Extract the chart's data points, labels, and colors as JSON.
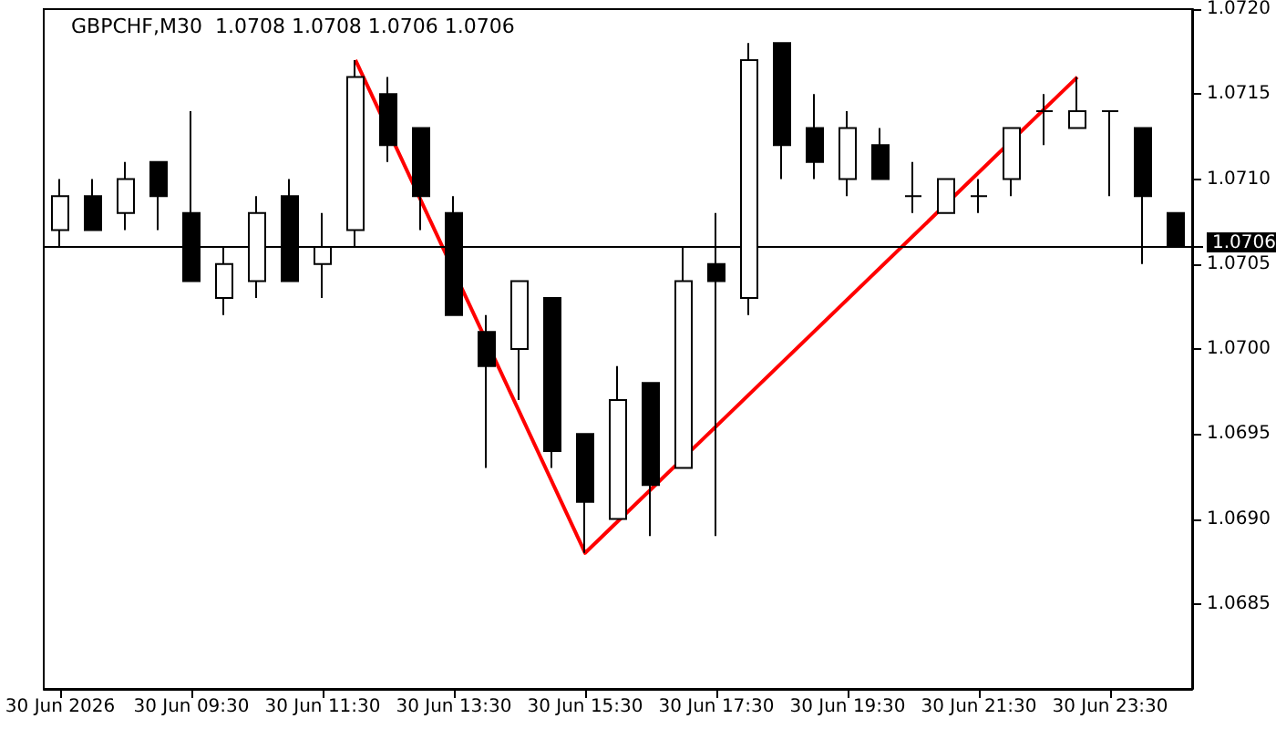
{
  "chart_data": {
    "type": "candlestick",
    "title": "GBPCHF,M30  1.0708 1.0708 1.0706 1.0706",
    "categories": [
      "30 Jun 2026",
      null,
      null,
      null,
      "30 Jun 09:30",
      null,
      null,
      null,
      "30 Jun 11:30",
      null,
      null,
      null,
      "30 Jun 13:30",
      null,
      null,
      null,
      "30 Jun 15:30",
      null,
      null,
      null,
      "30 Jun 17:30",
      null,
      null,
      null,
      "30 Jun 19:30",
      null,
      null,
      null,
      "30 Jun 21:30",
      null,
      null,
      null,
      "30 Jun 23:30",
      null,
      null
    ],
    "series": [
      {
        "color": "#000000",
        "ohlc": [
          [
            1.0707,
            1.071,
            1.0706,
            1.0709
          ],
          [
            1.0709,
            1.071,
            1.0707,
            1.0707
          ],
          [
            1.0708,
            1.0711,
            1.0707,
            1.071
          ],
          [
            1.0711,
            1.0711,
            1.0707,
            1.0709
          ],
          [
            1.0708,
            1.0714,
            1.0704,
            1.0704
          ],
          [
            1.0703,
            1.0706,
            1.0702,
            1.0705
          ],
          [
            1.0704,
            1.0709,
            1.0703,
            1.0708
          ],
          [
            1.0709,
            1.071,
            1.0704,
            1.0704
          ],
          [
            1.0705,
            1.0708,
            1.0703,
            1.0706
          ],
          [
            1.0707,
            1.0717,
            1.0706,
            1.0716
          ],
          [
            1.0715,
            1.0716,
            1.0711,
            1.0712
          ],
          [
            1.0713,
            1.0713,
            1.0707,
            1.0709
          ],
          [
            1.0708,
            1.0709,
            1.0702,
            1.0702
          ],
          [
            1.0701,
            1.0702,
            1.0693,
            1.0699
          ],
          [
            1.07,
            1.0704,
            1.0697,
            1.0704
          ],
          [
            1.0703,
            1.0703,
            1.0693,
            1.0694
          ],
          [
            1.0695,
            1.0695,
            1.0688,
            1.0691
          ],
          [
            1.069,
            1.0699,
            1.069,
            1.0697
          ],
          [
            1.0698,
            1.0698,
            1.0689,
            1.0692
          ],
          [
            1.0693,
            1.0706,
            1.0693,
            1.0704
          ],
          [
            1.0705,
            1.0708,
            1.0689,
            1.0704
          ],
          [
            1.0703,
            1.0718,
            1.0702,
            1.0717
          ],
          [
            1.0718,
            1.0718,
            1.071,
            1.0712
          ],
          [
            1.0713,
            1.0715,
            1.071,
            1.0711
          ],
          [
            1.071,
            1.0714,
            1.0709,
            1.0713
          ],
          [
            1.0712,
            1.0713,
            1.071,
            1.071
          ],
          [
            1.0709,
            1.0711,
            1.0708,
            1.0709
          ],
          [
            1.0708,
            1.071,
            1.0708,
            1.071
          ],
          [
            1.0709,
            1.071,
            1.0708,
            1.0709
          ],
          [
            1.071,
            1.0713,
            1.0709,
            1.0713
          ],
          [
            1.0714,
            1.0715,
            1.0712,
            1.0714
          ],
          [
            1.0713,
            1.0716,
            1.0713,
            1.0714
          ],
          [
            1.0714,
            1.0714,
            1.0709,
            1.0714
          ],
          [
            1.0713,
            1.0713,
            1.0705,
            1.0709
          ],
          [
            1.0708,
            1.0708,
            1.0706,
            1.0706
          ]
        ]
      },
      {
        "type": "line",
        "color": "#ff0000",
        "values": [
          null,
          null,
          null,
          null,
          null,
          null,
          null,
          null,
          null,
          1.0717,
          null,
          null,
          null,
          null,
          null,
          null,
          1.0688,
          null,
          null,
          null,
          null,
          null,
          null,
          null,
          null,
          null,
          null,
          null,
          null,
          null,
          null,
          1.0716,
          null,
          null,
          null
        ]
      }
    ],
    "ylim": [
      1.068,
      1.072
    ],
    "yticks": [
      {
        "value": 1.0685,
        "label": "1.0685"
      },
      {
        "value": 1.069,
        "label": "1.0690"
      },
      {
        "value": 1.0695,
        "label": "1.0695"
      },
      {
        "value": 1.07,
        "label": "1.0700"
      },
      {
        "value": 1.0705,
        "label": "1.0705"
      },
      {
        "value": 1.071,
        "label": "1.0710"
      },
      {
        "value": 1.0715,
        "label": "1.0715"
      },
      {
        "value": 1.072,
        "label": "1.0720"
      }
    ],
    "ref_lines": [
      {
        "axis": "y",
        "value": 1.0706,
        "label": "1.0706",
        "color": "#000000"
      }
    ],
    "marker": "none",
    "grid": false
  }
}
